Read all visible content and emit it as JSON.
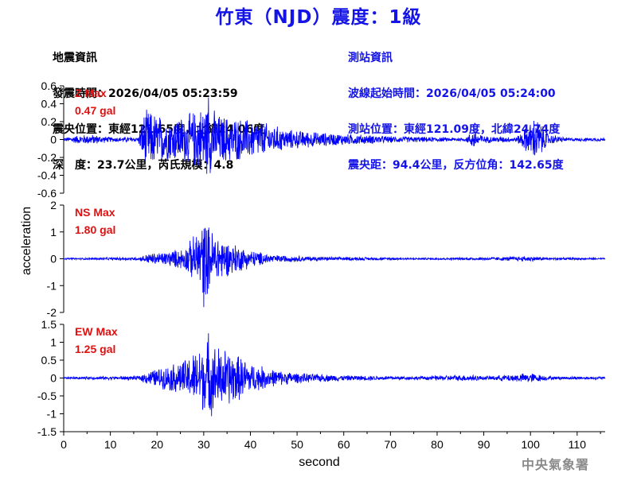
{
  "header": {
    "title": "竹東（NJD）震度：1級"
  },
  "earthquake_info": {
    "heading": "地震資訊",
    "origin_time": "發震時間：2026/04/05 05:23:59",
    "epicenter": "震央位置：東經121.65度，北緯24.06度",
    "depth_magnitude": "深　度：23.7公里，芮氏規模：4.8"
  },
  "station_info": {
    "heading": "測站資訊",
    "wave_start": "波線起始時間：2026/04/05 05:24:00",
    "station_position": "測站位置：東經121.09度，北緯24.74度",
    "distance": "震央距：94.4公里，反方位角：142.65度"
  },
  "watermark": "中央氣象署",
  "colors": {
    "trace": "#0000ff",
    "title": "#1414e6",
    "label": "#e01010"
  },
  "chart_data": {
    "type": "line",
    "xlabel": "second",
    "ylabel": "acceleration",
    "xlim": [
      0,
      116
    ],
    "xticks": [
      0,
      10,
      20,
      30,
      40,
      50,
      60,
      70,
      80,
      90,
      100,
      110
    ],
    "grid": false,
    "panels": [
      {
        "component": "Z",
        "label_line1": "Z Max",
        "label_line2": "0.47 gal",
        "max_gal": 0.47,
        "ylim": [
          -0.6,
          0.6
        ],
        "yticks": [
          -0.6,
          -0.4,
          -0.2,
          0,
          0.2,
          0.4,
          0.6
        ],
        "ytick_labels": [
          "-0.6",
          "-0.4",
          "-0.2",
          "0",
          "0.2",
          "0.4",
          "0.6"
        ],
        "envelope": [
          [
            0,
            0.02
          ],
          [
            3,
            0.05
          ],
          [
            6,
            0.06
          ],
          [
            10,
            0.03
          ],
          [
            16,
            0.03
          ],
          [
            17,
            0.3
          ],
          [
            18,
            0.36
          ],
          [
            22,
            0.25
          ],
          [
            26,
            0.28
          ],
          [
            31,
            0.44
          ],
          [
            33,
            0.3
          ],
          [
            37,
            0.26
          ],
          [
            42,
            0.22
          ],
          [
            48,
            0.12
          ],
          [
            56,
            0.08
          ],
          [
            70,
            0.04
          ],
          [
            86,
            0.02
          ],
          [
            88,
            0.12
          ],
          [
            90,
            0.04
          ],
          [
            97,
            0.03
          ],
          [
            100,
            0.2
          ],
          [
            101,
            0.28
          ],
          [
            104,
            0.06
          ],
          [
            108,
            0.02
          ],
          [
            116,
            0.02
          ]
        ]
      },
      {
        "component": "NS",
        "label_line1": "NS Max",
        "label_line2": "1.80 gal",
        "max_gal": 1.8,
        "ylim": [
          -2,
          2
        ],
        "yticks": [
          -2,
          -1,
          0,
          1,
          2
        ],
        "ytick_labels": [
          "-2",
          "-1",
          "0",
          "1",
          "2"
        ],
        "envelope": [
          [
            0,
            0.03
          ],
          [
            10,
            0.05
          ],
          [
            16,
            0.06
          ],
          [
            18,
            0.2
          ],
          [
            22,
            0.28
          ],
          [
            26,
            0.45
          ],
          [
            29,
            1.2
          ],
          [
            30,
            1.6
          ],
          [
            32,
            1.1
          ],
          [
            35,
            0.7
          ],
          [
            40,
            0.35
          ],
          [
            45,
            0.15
          ],
          [
            55,
            0.08
          ],
          [
            75,
            0.04
          ],
          [
            88,
            0.05
          ],
          [
            100,
            0.1
          ],
          [
            104,
            0.05
          ],
          [
            116,
            0.03
          ]
        ]
      },
      {
        "component": "EW",
        "label_line1": "EW Max",
        "label_line2": "1.25 gal",
        "max_gal": 1.25,
        "ylim": [
          -1.5,
          1.5
        ],
        "yticks": [
          -1.5,
          -1,
          -0.5,
          0,
          0.5,
          1,
          1.5
        ],
        "ytick_labels": [
          "-1.5",
          "-1",
          "-0.5",
          "0",
          "0.5",
          "1",
          "1.5"
        ],
        "envelope": [
          [
            0,
            0.03
          ],
          [
            10,
            0.05
          ],
          [
            16,
            0.06
          ],
          [
            18,
            0.2
          ],
          [
            22,
            0.35
          ],
          [
            26,
            0.55
          ],
          [
            29,
            0.9
          ],
          [
            31,
            1.15
          ],
          [
            33,
            0.95
          ],
          [
            36,
            0.8
          ],
          [
            40,
            0.45
          ],
          [
            45,
            0.25
          ],
          [
            50,
            0.15
          ],
          [
            60,
            0.08
          ],
          [
            75,
            0.05
          ],
          [
            88,
            0.1
          ],
          [
            90,
            0.05
          ],
          [
            100,
            0.15
          ],
          [
            104,
            0.05
          ],
          [
            116,
            0.04
          ]
        ]
      }
    ]
  }
}
